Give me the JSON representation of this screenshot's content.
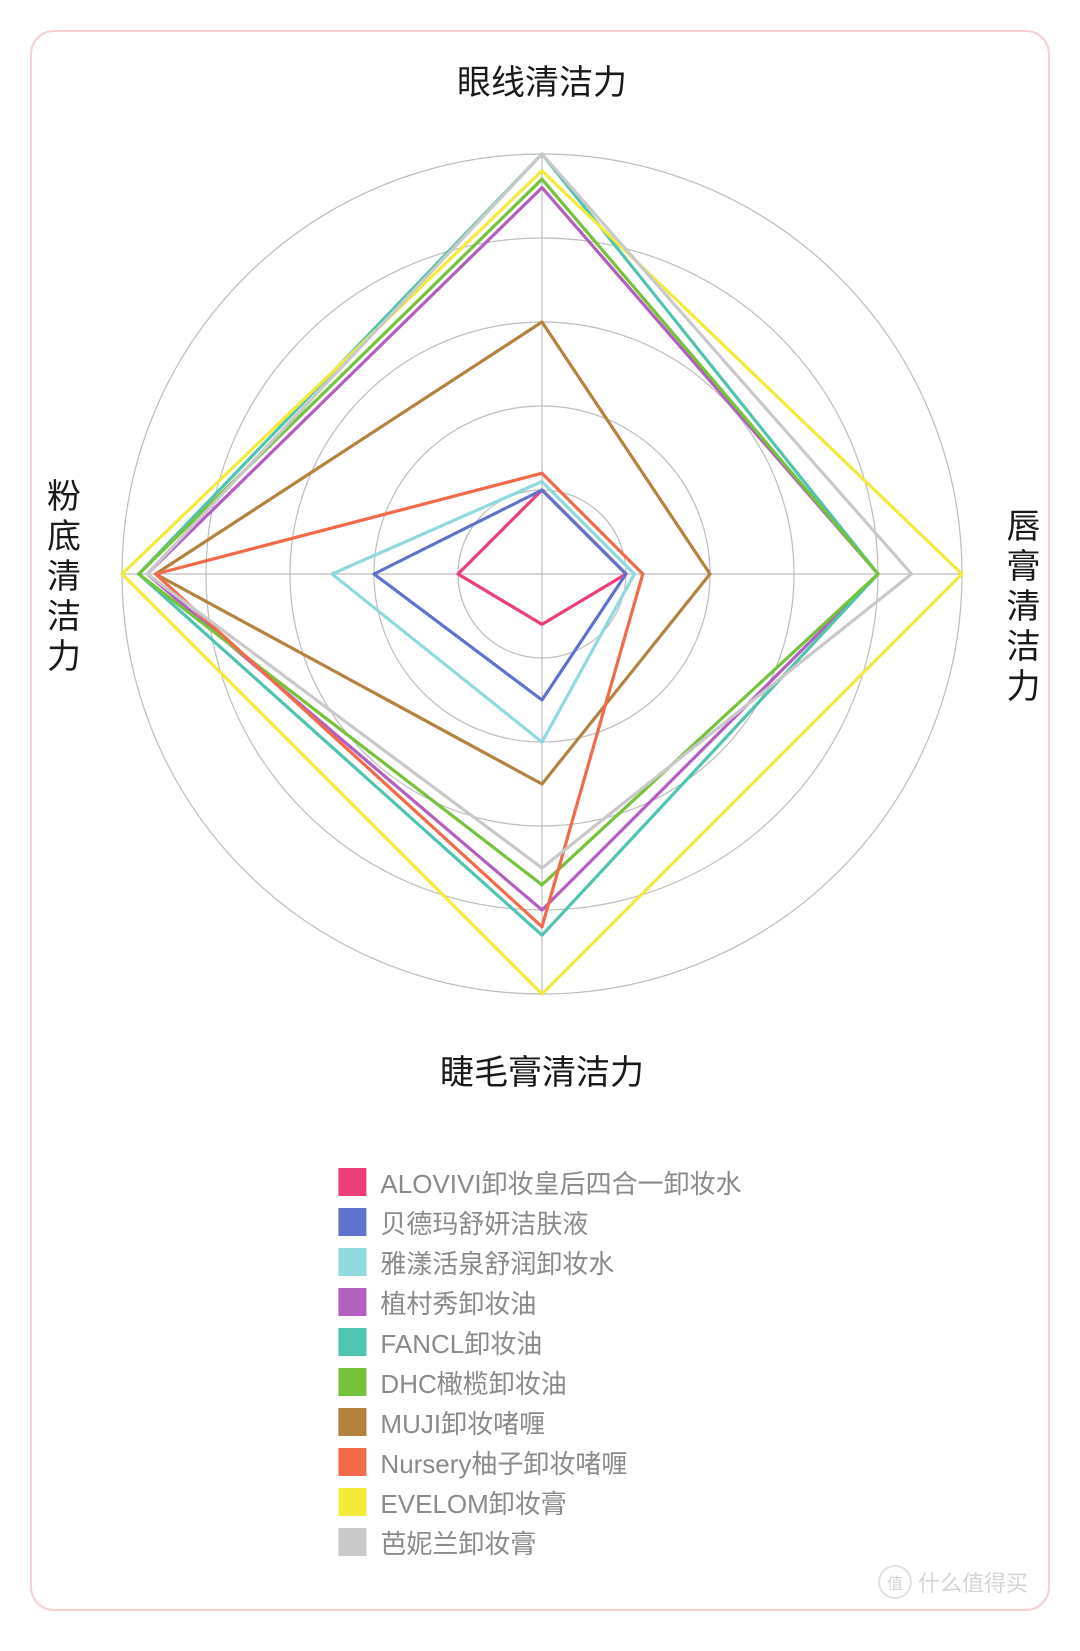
{
  "chart": {
    "type": "radar",
    "axes": [
      "眼线清洁力",
      "唇膏清洁力",
      "睫毛膏清洁力",
      "粉底清洁力"
    ],
    "rings": 5,
    "max": 5,
    "ring_color": "#bdbdbd",
    "ring_stroke_width": 1.2,
    "background_color": "#ffffff",
    "border_color": "#f8d0d0",
    "line_stroke_width": 3.2,
    "label_fontsize": 34,
    "label_color": "#1a1a1a",
    "series": [
      {
        "name": "ALOVIVI卸妆皇后四合一卸妆水",
        "color": "#ed3e7a",
        "values": [
          1.0,
          1.0,
          0.6,
          1.0
        ]
      },
      {
        "name": "贝德玛舒妍洁肤液",
        "color": "#5f72cf",
        "values": [
          1.0,
          1.0,
          1.5,
          2.0
        ]
      },
      {
        "name": "雅漾活泉舒润卸妆水",
        "color": "#8fd9df",
        "values": [
          1.1,
          1.1,
          2.0,
          2.5
        ]
      },
      {
        "name": "植村秀卸妆油",
        "color": "#b25fc0",
        "values": [
          4.6,
          4.0,
          4.0,
          4.7
        ]
      },
      {
        "name": "FANCL卸妆油",
        "color": "#4fc4b0",
        "values": [
          5.0,
          4.0,
          4.3,
          4.8
        ]
      },
      {
        "name": "DHC橄榄卸妆油",
        "color": "#76c23a",
        "values": [
          4.7,
          4.0,
          3.7,
          4.8
        ]
      },
      {
        "name": "MUJI卸妆啫喱",
        "color": "#b3833e",
        "values": [
          3.0,
          2.0,
          2.5,
          4.6
        ]
      },
      {
        "name": "Nursery柚子卸妆啫喱",
        "color": "#f36a4a",
        "values": [
          1.2,
          1.2,
          4.2,
          4.6
        ]
      },
      {
        "name": "EVELOM卸妆膏",
        "color": "#f4ea3a",
        "values": [
          4.8,
          5.0,
          5.0,
          5.0
        ]
      },
      {
        "name": "芭妮兰卸妆膏",
        "color": "#c9c9c9",
        "values": [
          5.0,
          4.4,
          3.5,
          4.7
        ]
      }
    ]
  },
  "legend": {
    "swatch_size": 28,
    "fontsize": 26,
    "text_color": "#8a8a8a"
  },
  "watermark": {
    "text": "什么值得买",
    "badge": "值"
  }
}
